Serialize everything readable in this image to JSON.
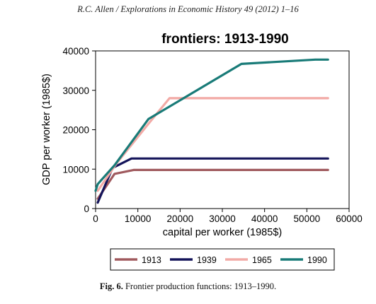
{
  "header": {
    "running_head": "R.C. Allen / Explorations in Economic History 49 (2012) 1–16"
  },
  "caption": {
    "label": "Fig. 6.",
    "text": " Frontier production functions: 1913–1990."
  },
  "chart_data": {
    "type": "line",
    "title": "frontiers:  1913-1990",
    "xlabel": "capital per worker (1985$)",
    "ylabel": "GDP per worker (1985$)",
    "xlim": [
      0,
      60000
    ],
    "ylim": [
      0,
      40000
    ],
    "x_ticks": [
      0,
      10000,
      20000,
      30000,
      40000,
      50000,
      60000
    ],
    "y_ticks": [
      0,
      10000,
      20000,
      30000,
      40000
    ],
    "x_tick_labels": [
      "0",
      "10000",
      "20000",
      "30000",
      "40000",
      "50000",
      "60000"
    ],
    "y_tick_labels": [
      "0",
      "10000",
      "20000",
      "30000",
      "40000"
    ],
    "grid": false,
    "legend_position": "bottom",
    "series": [
      {
        "name": "1913",
        "color": "#a05a5e",
        "x": [
          500,
          4500,
          9000,
          55000
        ],
        "y": [
          2500,
          8800,
          9800,
          9800
        ]
      },
      {
        "name": "1939",
        "color": "#14145a",
        "x": [
          500,
          4000,
          8500,
          55000
        ],
        "y": [
          1500,
          10300,
          12700,
          12700
        ]
      },
      {
        "name": "1965",
        "color": "#f2aaa6",
        "x": [
          500,
          5000,
          12500,
          17500,
          55000
        ],
        "y": [
          4500,
          11500,
          21500,
          28000,
          28000
        ]
      },
      {
        "name": "1990",
        "color": "#197b78",
        "x": [
          0,
          500,
          4500,
          12500,
          34500,
          52000,
          55000
        ],
        "y": [
          4500,
          6200,
          11000,
          22700,
          36700,
          37800,
          37800
        ]
      }
    ]
  }
}
